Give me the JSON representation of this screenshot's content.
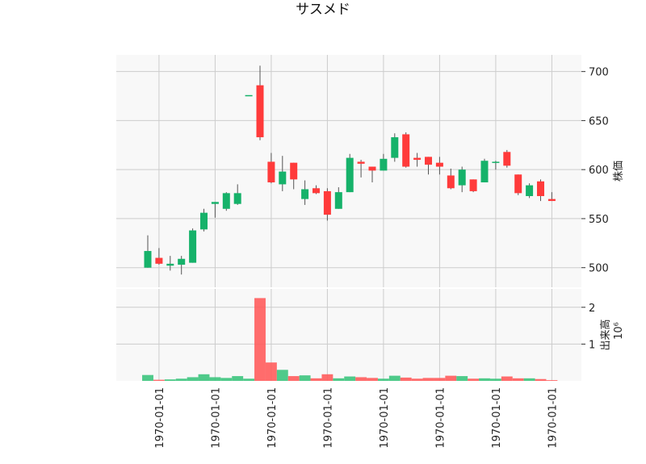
{
  "chart_data": [
    {
      "type": "candlestick",
      "title": "サスメド",
      "ylabel": "株価",
      "ylim": [
        480,
        717
      ],
      "yticks": [
        500,
        550,
        600,
        650,
        700
      ],
      "xtick_labels": [
        "1970-01-01",
        "1970-01-01",
        "1970-01-01",
        "1970-01-01",
        "1970-01-01",
        "1970-01-01",
        "1970-01-01",
        "1970-01-01"
      ],
      "xtick_positions": [
        1,
        6,
        11,
        16,
        21,
        26,
        31,
        36
      ],
      "grid": true,
      "colors": {
        "up": "#16b26a",
        "down": "#ff3b3b",
        "wick": "#555555",
        "panel_bg": "#f8f8f8",
        "grid": "#cccccc"
      },
      "ohlc": [
        {
          "o": 500,
          "h": 533,
          "l": 500,
          "c": 517
        },
        {
          "o": 510,
          "h": 520,
          "l": 503,
          "c": 504
        },
        {
          "o": 502,
          "h": 512,
          "l": 497,
          "c": 504
        },
        {
          "o": 503,
          "h": 512,
          "l": 493,
          "c": 509
        },
        {
          "o": 505,
          "h": 540,
          "l": 505,
          "c": 538
        },
        {
          "o": 539,
          "h": 560,
          "l": 537,
          "c": 556
        },
        {
          "o": 565,
          "h": 567,
          "l": 551,
          "c": 567
        },
        {
          "o": 560,
          "h": 577,
          "l": 558,
          "c": 576
        },
        {
          "o": 565,
          "h": 585,
          "l": 564,
          "c": 576
        },
        {
          "o": 676,
          "h": 676,
          "l": 676,
          "c": 676
        },
        {
          "o": 686,
          "h": 706,
          "l": 630,
          "c": 633
        },
        {
          "o": 608,
          "h": 617,
          "l": 586,
          "c": 587
        },
        {
          "o": 585,
          "h": 614,
          "l": 578,
          "c": 598
        },
        {
          "o": 607,
          "h": 607,
          "l": 580,
          "c": 590
        },
        {
          "o": 570,
          "h": 589,
          "l": 564,
          "c": 580
        },
        {
          "o": 581,
          "h": 584,
          "l": 575,
          "c": 576
        },
        {
          "o": 578,
          "h": 581,
          "l": 548,
          "c": 554
        },
        {
          "o": 560,
          "h": 582,
          "l": 560,
          "c": 577
        },
        {
          "o": 577,
          "h": 616,
          "l": 577,
          "c": 612
        },
        {
          "o": 608,
          "h": 610,
          "l": 592,
          "c": 606
        },
        {
          "o": 603,
          "h": 603,
          "l": 587,
          "c": 599
        },
        {
          "o": 599,
          "h": 616,
          "l": 599,
          "c": 611
        },
        {
          "o": 612,
          "h": 637,
          "l": 608,
          "c": 633
        },
        {
          "o": 636,
          "h": 638,
          "l": 602,
          "c": 603
        },
        {
          "o": 612,
          "h": 617,
          "l": 603,
          "c": 610
        },
        {
          "o": 613,
          "h": 613,
          "l": 595,
          "c": 605
        },
        {
          "o": 607,
          "h": 613,
          "l": 595,
          "c": 603
        },
        {
          "o": 594,
          "h": 601,
          "l": 580,
          "c": 581
        },
        {
          "o": 584,
          "h": 603,
          "l": 577,
          "c": 600
        },
        {
          "o": 590,
          "h": 590,
          "l": 577,
          "c": 578
        },
        {
          "o": 587,
          "h": 611,
          "l": 587,
          "c": 609
        },
        {
          "o": 607,
          "h": 609,
          "l": 600,
          "c": 608
        },
        {
          "o": 618,
          "h": 620,
          "l": 602,
          "c": 604
        },
        {
          "o": 595,
          "h": 595,
          "l": 574,
          "c": 576
        },
        {
          "o": 573,
          "h": 586,
          "l": 571,
          "c": 584
        },
        {
          "o": 588,
          "h": 590,
          "l": 568,
          "c": 573
        },
        {
          "o": 570,
          "h": 577,
          "l": 568,
          "c": 568
        }
      ]
    },
    {
      "type": "bar",
      "ylabel": "出来高",
      "yexponent": "10⁶",
      "ylim": [
        0,
        2.5
      ],
      "yticks": [
        1,
        2
      ],
      "yticklabels": [
        "1",
        "2"
      ],
      "colors": {
        "up": "#3cc47d",
        "down": "#ff5c5c"
      },
      "volume": [
        0.16,
        0.03,
        0.04,
        0.06,
        0.1,
        0.18,
        0.1,
        0.08,
        0.13,
        0.06,
        2.25,
        0.5,
        0.3,
        0.13,
        0.15,
        0.07,
        0.18,
        0.07,
        0.12,
        0.1,
        0.08,
        0.06,
        0.14,
        0.09,
        0.06,
        0.08,
        0.08,
        0.14,
        0.13,
        0.06,
        0.07,
        0.06,
        0.12,
        0.07,
        0.07,
        0.05,
        0.02
      ]
    }
  ]
}
